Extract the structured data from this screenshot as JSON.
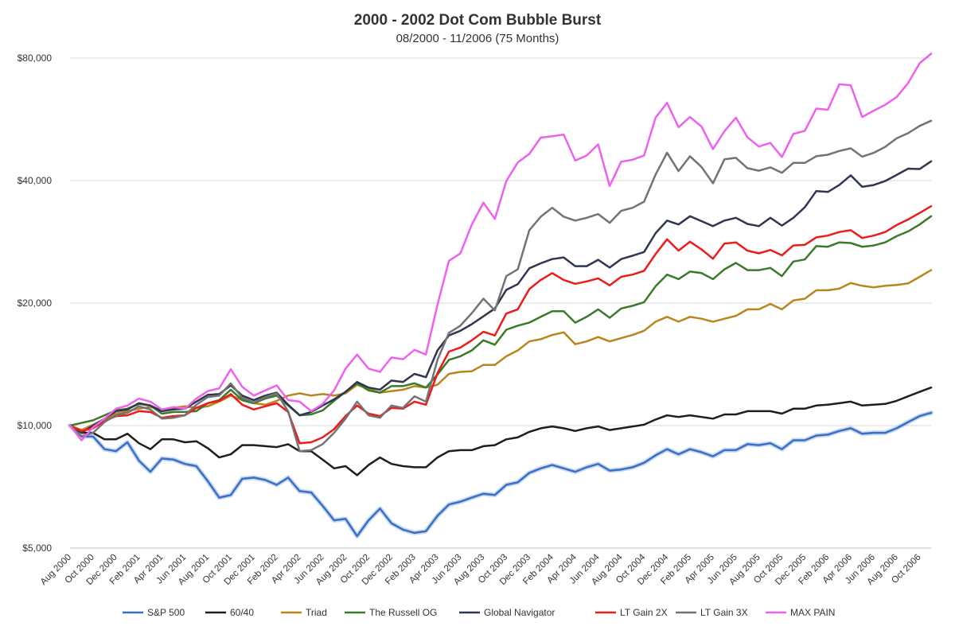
{
  "chart_data": {
    "type": "line",
    "title": "2000  - 2002 Dot Com Bubble Burst",
    "subtitle": "08/2000 - 11/2006 (75 Months)",
    "xlabel": "",
    "ylabel": "",
    "y_scale": "log",
    "ylim": [
      5000,
      80000
    ],
    "y_ticks": [
      5000,
      10000,
      20000,
      40000,
      80000
    ],
    "y_tick_labels": [
      "$5,000",
      "$10,000",
      "$20,000",
      "$40,000",
      "$80,000"
    ],
    "grid": "horizontal",
    "legend_position": "bottom",
    "x_tick_labels": [
      "Aug 2000",
      "Oct 2000",
      "Dec 2000",
      "Feb 2001",
      "Apr 2001",
      "Jun 2001",
      "Aug 2001",
      "Oct 2001",
      "Dec 2001",
      "Feb 2002",
      "Apr 2002",
      "Jun 2002",
      "Aug 2002",
      "Oct 2002",
      "Dec 2002",
      "Feb 2003",
      "Apr 2003",
      "Jun 2003",
      "Aug 2003",
      "Oct 2003",
      "Dec 2003",
      "Feb 2004",
      "Apr 2004",
      "Jun 2004",
      "Aug 2004",
      "Oct 2004",
      "Dec 2004",
      "Feb 2005",
      "Apr 2005",
      "Jun 2005",
      "Aug 2005",
      "Oct 2005",
      "Dec 2005",
      "Feb 2006",
      "Apr 2006",
      "Jun 2006",
      "Aug 2006",
      "Oct 2006"
    ],
    "x": [
      "Aug 2000",
      "Sep 2000",
      "Oct 2000",
      "Nov 2000",
      "Dec 2000",
      "Jan 2001",
      "Feb 2001",
      "Mar 2001",
      "Apr 2001",
      "May 2001",
      "Jun 2001",
      "Jul 2001",
      "Aug 2001",
      "Sep 2001",
      "Oct 2001",
      "Nov 2001",
      "Dec 2001",
      "Jan 2002",
      "Feb 2002",
      "Mar 2002",
      "Apr 2002",
      "May 2002",
      "Jun 2002",
      "Jul 2002",
      "Aug 2002",
      "Sep 2002",
      "Oct 2002",
      "Nov 2002",
      "Dec 2002",
      "Jan 2003",
      "Feb 2003",
      "Mar 2003",
      "Apr 2003",
      "May 2003",
      "Jun 2003",
      "Jul 2003",
      "Aug 2003",
      "Sep 2003",
      "Oct 2003",
      "Nov 2003",
      "Dec 2003",
      "Jan 2004",
      "Feb 2004",
      "Mar 2004",
      "Apr 2004",
      "May 2004",
      "Jun 2004",
      "Jul 2004",
      "Aug 2004",
      "Sep 2004",
      "Oct 2004",
      "Nov 2004",
      "Dec 2004",
      "Jan 2005",
      "Feb 2005",
      "Mar 2005",
      "Apr 2005",
      "May 2005",
      "Jun 2005",
      "Jul 2005",
      "Aug 2005",
      "Sep 2005",
      "Oct 2005",
      "Nov 2005",
      "Dec 2005",
      "Jan 2006",
      "Feb 2006",
      "Mar 2006",
      "Apr 2006",
      "May 2006",
      "Jun 2006",
      "Jul 2006",
      "Aug 2006",
      "Sep 2006",
      "Oct 2006",
      "Nov 2006"
    ],
    "series": [
      {
        "name": "S&P 500",
        "color": "#3a6fc4",
        "values": [
          10000,
          9400,
          9400,
          8750,
          8650,
          9100,
          8200,
          7700,
          8300,
          8250,
          8050,
          7950,
          7300,
          6650,
          6750,
          7400,
          7450,
          7350,
          7150,
          7450,
          6900,
          6850,
          6350,
          5850,
          5900,
          5350,
          5850,
          6250,
          5750,
          5550,
          5450,
          5500,
          6000,
          6400,
          6500,
          6650,
          6800,
          6750,
          7150,
          7250,
          7650,
          7850,
          8000,
          7850,
          7700,
          7900,
          8050,
          7750,
          7800,
          7900,
          8100,
          8450,
          8750,
          8500,
          8750,
          8600,
          8400,
          8700,
          8700,
          9000,
          8950,
          9050,
          8750,
          9200,
          9200,
          9450,
          9500,
          9700,
          9850,
          9550,
          9600,
          9600,
          9850,
          10200,
          10550,
          10750
        ]
      },
      {
        "name": "60/40",
        "color": "#1e1e1e",
        "values": [
          10000,
          9600,
          9600,
          9250,
          9250,
          9550,
          9050,
          8750,
          9250,
          9250,
          9100,
          9150,
          8800,
          8350,
          8500,
          8950,
          8950,
          8900,
          8850,
          9000,
          8650,
          8650,
          8250,
          7850,
          7950,
          7550,
          8000,
          8350,
          8050,
          7950,
          7900,
          7900,
          8350,
          8650,
          8700,
          8700,
          8900,
          8950,
          9250,
          9350,
          9650,
          9850,
          9950,
          9850,
          9700,
          9850,
          9950,
          9750,
          9850,
          9950,
          10050,
          10350,
          10600,
          10500,
          10600,
          10500,
          10400,
          10650,
          10650,
          10850,
          10850,
          10850,
          10700,
          11000,
          11000,
          11200,
          11250,
          11350,
          11450,
          11200,
          11250,
          11300,
          11500,
          11800,
          12100,
          12400
        ]
      },
      {
        "name": "Triad",
        "color": "#b8861b",
        "values": [
          10000,
          9750,
          10050,
          10350,
          10700,
          10850,
          11000,
          11100,
          10950,
          11050,
          11150,
          11050,
          11150,
          11450,
          11850,
          11550,
          11350,
          11250,
          11500,
          11850,
          12000,
          11850,
          11950,
          11850,
          12000,
          12600,
          12300,
          12050,
          12150,
          12250,
          12500,
          12400,
          12600,
          13400,
          13550,
          13600,
          14100,
          14100,
          14800,
          15300,
          16100,
          16300,
          16700,
          16950,
          15850,
          16100,
          16500,
          16100,
          16400,
          16700,
          17100,
          18000,
          18500,
          18000,
          18500,
          18300,
          18000,
          18300,
          18600,
          19300,
          19300,
          19900,
          19300,
          20300,
          20500,
          21500,
          21500,
          21700,
          22400,
          22050,
          21850,
          22050,
          22150,
          22350,
          23200,
          24100
        ]
      },
      {
        "name": "The Russell OG",
        "color": "#3a7a2a",
        "values": [
          10000,
          10150,
          10300,
          10600,
          10900,
          11000,
          11300,
          11200,
          10700,
          10800,
          10800,
          10850,
          11350,
          11550,
          12250,
          11550,
          11350,
          11650,
          11850,
          11200,
          10600,
          10650,
          10900,
          11500,
          12100,
          12700,
          12200,
          12050,
          12500,
          12500,
          12700,
          12400,
          13350,
          14500,
          14800,
          15300,
          16200,
          15800,
          17200,
          17600,
          17900,
          18500,
          19100,
          19100,
          17900,
          18500,
          19300,
          18400,
          19400,
          19700,
          20100,
          22000,
          23500,
          22900,
          23900,
          23700,
          22900,
          24200,
          25100,
          24100,
          24100,
          24400,
          23300,
          25300,
          25600,
          27600,
          27500,
          28200,
          28100,
          27500,
          27700,
          28200,
          29200,
          30000,
          31200,
          32700
        ]
      },
      {
        "name": "Global Navigator",
        "color": "#2f3650",
        "values": [
          10000,
          9600,
          10000,
          10400,
          10850,
          10950,
          11350,
          11200,
          10850,
          10950,
          11000,
          11450,
          11900,
          11950,
          12550,
          11850,
          11550,
          11850,
          12050,
          11250,
          10600,
          10800,
          11200,
          11600,
          12100,
          12800,
          12400,
          12250,
          12900,
          12800,
          13400,
          13150,
          15300,
          16650,
          17100,
          17750,
          18550,
          19400,
          21550,
          22250,
          24350,
          25050,
          25650,
          25900,
          24650,
          24650,
          25550,
          24450,
          25650,
          26150,
          26700,
          29700,
          31900,
          31200,
          32700,
          31800,
          30900,
          31900,
          32400,
          31300,
          30900,
          32400,
          31000,
          32400,
          34400,
          37700,
          37500,
          39000,
          41200,
          38600,
          39000,
          39900,
          41300,
          42800,
          42700,
          44600
        ]
      },
      {
        "name": "LT Gain 2X",
        "color": "#ee1b1b",
        "values": [
          10000,
          9700,
          9850,
          10250,
          10550,
          10600,
          10850,
          10800,
          10450,
          10550,
          10600,
          11050,
          11350,
          11500,
          11950,
          11250,
          10950,
          11150,
          11350,
          10800,
          9050,
          9100,
          9350,
          9800,
          10550,
          11200,
          10700,
          10550,
          11050,
          11000,
          11450,
          11250,
          13450,
          15200,
          15550,
          16200,
          17000,
          16650,
          18850,
          19300,
          21650,
          22800,
          23700,
          22800,
          22300,
          22600,
          23000,
          22100,
          23200,
          23500,
          24000,
          26400,
          28700,
          26900,
          28300,
          27100,
          25700,
          28000,
          28200,
          26900,
          26500,
          27000,
          26200,
          27700,
          27800,
          29000,
          29300,
          29900,
          30200,
          28900,
          29300,
          29900,
          31100,
          32100,
          33300,
          34600
        ]
      },
      {
        "name": "LT Gain 3X",
        "color": "#737373",
        "values": [
          10000,
          9400,
          9600,
          10200,
          10600,
          10750,
          11150,
          10950,
          10400,
          10450,
          10600,
          11250,
          11750,
          11850,
          12700,
          11700,
          11400,
          11750,
          12000,
          10850,
          8650,
          8700,
          9000,
          9600,
          10400,
          11450,
          10600,
          10450,
          11200,
          11050,
          11800,
          11450,
          14500,
          16900,
          17600,
          18900,
          20500,
          19200,
          23300,
          24200,
          30200,
          32600,
          34300,
          32600,
          31900,
          32400,
          33100,
          31500,
          33700,
          34300,
          35500,
          41400,
          46800,
          42200,
          45900,
          43200,
          39400,
          45100,
          45500,
          42900,
          42300,
          43100,
          41800,
          44200,
          44200,
          45900,
          46300,
          47300,
          48000,
          45800,
          46800,
          48400,
          50800,
          52300,
          54500,
          56100
        ]
      },
      {
        "name": "MAX PAIN",
        "color": "#ee61ee",
        "values": [
          10000,
          9200,
          9900,
          10400,
          11000,
          11200,
          11650,
          11450,
          10950,
          11100,
          11000,
          11650,
          12150,
          12350,
          13750,
          12450,
          11850,
          12200,
          12550,
          11550,
          11450,
          10850,
          11300,
          12200,
          13800,
          14950,
          13800,
          13550,
          14700,
          14550,
          15350,
          14950,
          19800,
          25400,
          26500,
          31200,
          35300,
          32200,
          39900,
          44300,
          46500,
          51000,
          51400,
          51900,
          44800,
          46100,
          49100,
          38800,
          44500,
          45000,
          46100,
          57100,
          62100,
          54100,
          57300,
          54300,
          47800,
          52900,
          57100,
          51100,
          48500,
          49500,
          45700,
          52100,
          53000,
          60100,
          59700,
          69000,
          68600,
          57300,
          59400,
          61400,
          64200,
          69500,
          77700,
          82000
        ]
      }
    ]
  }
}
